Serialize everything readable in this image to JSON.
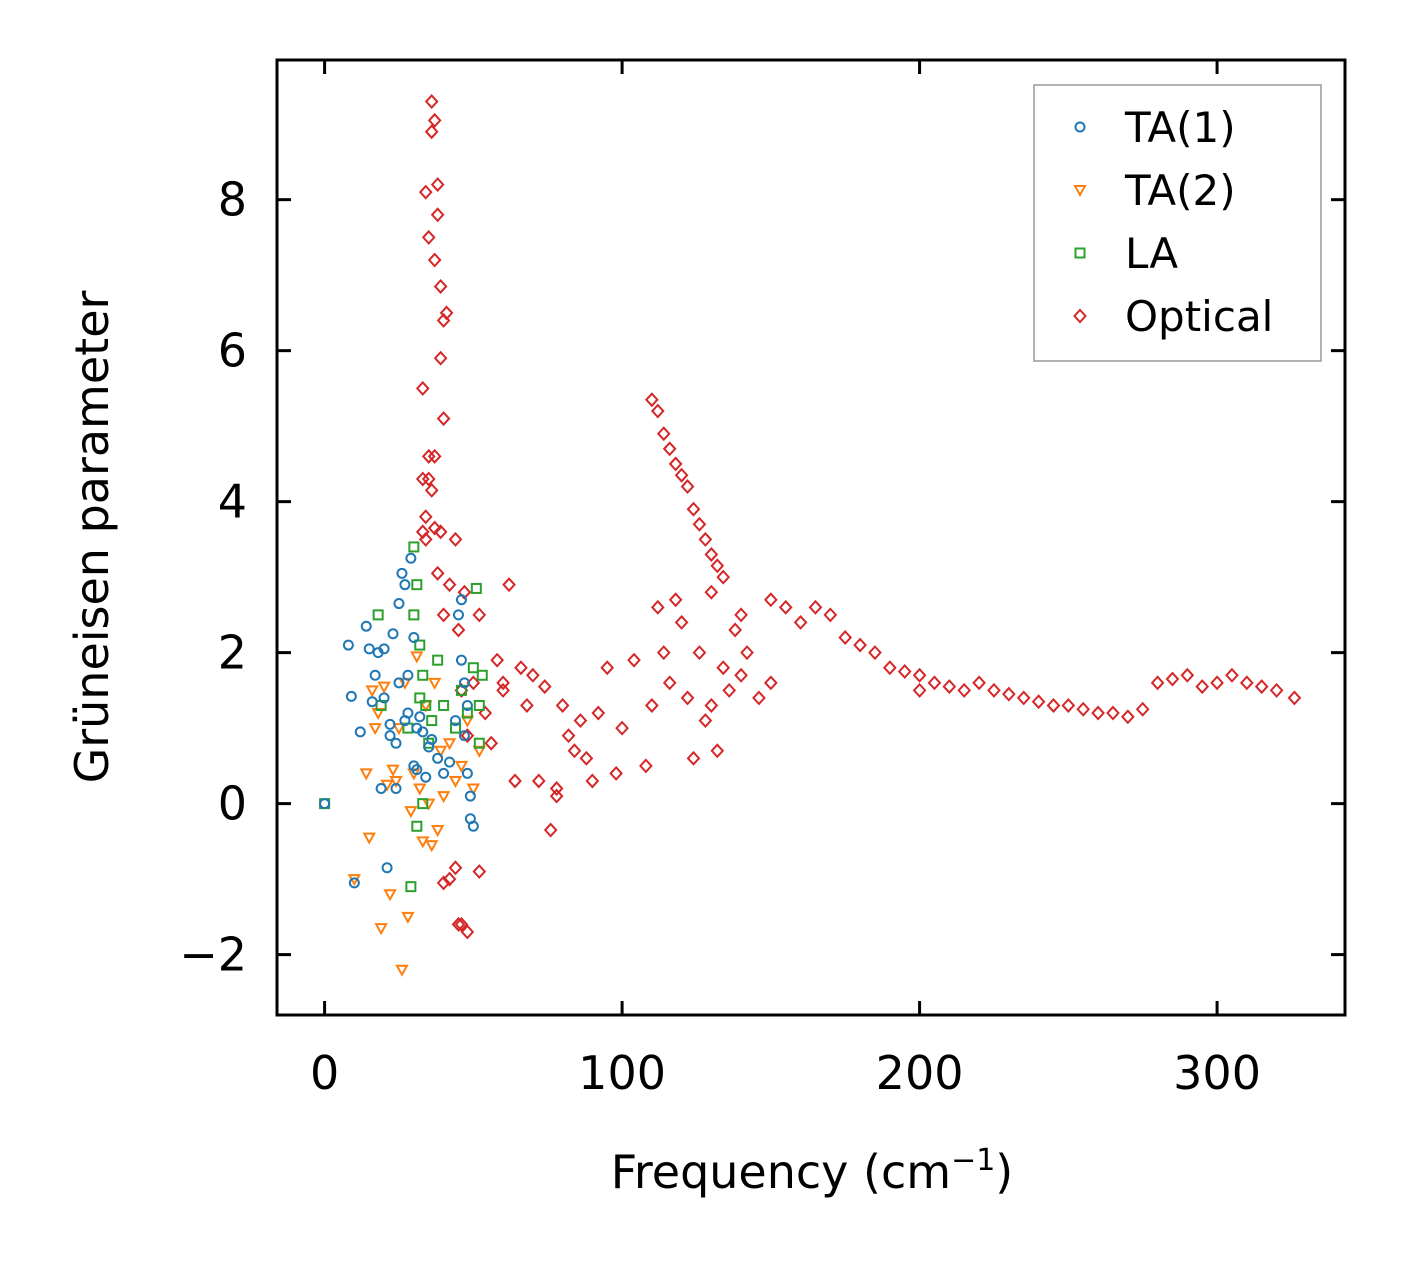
{
  "chart_data": {
    "type": "scatter",
    "title": "",
    "xlabel": "Frequency (cm",
    "xlabel_superscript": "−1",
    "xlabel_suffix": ")",
    "ylabel": "Grüneisen parameter",
    "xlim": [
      -16,
      343
    ],
    "ylim": [
      -2.8,
      9.85
    ],
    "xticks": [
      0,
      100,
      200,
      300
    ],
    "xtick_labels": [
      "0",
      "100",
      "200",
      "300"
    ],
    "yticks": [
      -2,
      0,
      2,
      4,
      6,
      8
    ],
    "ytick_labels": [
      "−2",
      "0",
      "2",
      "4",
      "6",
      "8"
    ],
    "grid": false,
    "legend_position": "top-right",
    "series": [
      {
        "name": "TA(1)",
        "marker": "circle",
        "color": "#1f77b4",
        "x": [
          0,
          8,
          9,
          10,
          12,
          14,
          15,
          16,
          17,
          18,
          19,
          20,
          20,
          21,
          22,
          22,
          23,
          24,
          24,
          25,
          25,
          26,
          27,
          27,
          28,
          28,
          29,
          30,
          30,
          31,
          31,
          32,
          33,
          34,
          35,
          36,
          38,
          40,
          42,
          44,
          45,
          46,
          46,
          47,
          47,
          48,
          48,
          49,
          49,
          50
        ],
        "y": [
          0,
          2.1,
          1.42,
          -1.05,
          0.95,
          2.35,
          2.05,
          1.35,
          1.7,
          2.0,
          0.2,
          1.4,
          2.05,
          -0.85,
          1.05,
          0.9,
          2.25,
          0.2,
          0.8,
          2.65,
          1.6,
          3.05,
          1.1,
          2.9,
          1.2,
          1.7,
          3.25,
          2.2,
          0.5,
          1.0,
          0.45,
          1.15,
          0.95,
          0.35,
          0.75,
          0.85,
          0.6,
          0.4,
          0.55,
          1.1,
          2.5,
          2.7,
          1.9,
          1.6,
          0.9,
          0.4,
          1.3,
          0.1,
          -0.2,
          -0.3
        ]
      },
      {
        "name": "TA(2)",
        "marker": "triangle-down",
        "color": "#ff7f0e",
        "x": [
          10,
          14,
          15,
          16,
          17,
          18,
          19,
          20,
          21,
          22,
          23,
          24,
          25,
          26,
          27,
          28,
          29,
          30,
          31,
          32,
          33,
          34,
          35,
          36,
          37,
          38,
          39,
          40,
          42,
          44,
          46,
          48,
          50,
          52
        ],
        "y": [
          -1.0,
          0.4,
          -0.45,
          1.5,
          1.0,
          1.2,
          -1.65,
          1.55,
          0.25,
          -1.2,
          0.45,
          0.3,
          1.0,
          -2.2,
          1.6,
          -1.5,
          -0.1,
          0.4,
          1.95,
          0.2,
          -0.5,
          1.3,
          0.0,
          -0.55,
          1.6,
          -0.35,
          0.7,
          0.1,
          0.8,
          0.3,
          0.5,
          1.1,
          0.2,
          0.7
        ]
      },
      {
        "name": "LA",
        "marker": "square",
        "color": "#2ca02c",
        "x": [
          0,
          18,
          19,
          28,
          29,
          30,
          30,
          31,
          31,
          32,
          32,
          33,
          33,
          34,
          35,
          36,
          38,
          40,
          44,
          46,
          48,
          50,
          51,
          52,
          52,
          53
        ],
        "y": [
          0,
          2.5,
          1.3,
          1.0,
          -1.1,
          3.4,
          2.5,
          2.9,
          -0.3,
          1.4,
          2.1,
          0.0,
          1.7,
          1.3,
          0.8,
          1.1,
          1.9,
          1.3,
          1.0,
          1.5,
          1.2,
          1.8,
          2.85,
          0.8,
          1.3,
          1.7
        ]
      },
      {
        "name": "Optical",
        "marker": "diamond",
        "color": "#d62728",
        "x": [
          34,
          35,
          36,
          36,
          37,
          37,
          38,
          38,
          39,
          39,
          40,
          40,
          41,
          33,
          33,
          33,
          34,
          34,
          35,
          35,
          36,
          37,
          37,
          38,
          39,
          40,
          42,
          44,
          45,
          46,
          47,
          48,
          50,
          52,
          54,
          56,
          58,
          60,
          62,
          64,
          66,
          68,
          70,
          72,
          74,
          76,
          78,
          80,
          82,
          84,
          86,
          88,
          90,
          92,
          95,
          98,
          100,
          104,
          108,
          110,
          112,
          114,
          116,
          118,
          120,
          122,
          124,
          126,
          128,
          130,
          132,
          134,
          136,
          138,
          140,
          142,
          146,
          150,
          155,
          160,
          165,
          170,
          175,
          180,
          185,
          190,
          195,
          200,
          205,
          210,
          215,
          220,
          225,
          230,
          235,
          240,
          245,
          250,
          255,
          260,
          265,
          270,
          275,
          280,
          285,
          290,
          295,
          300,
          305,
          310,
          315,
          320,
          326,
          40,
          42,
          45,
          48,
          52,
          44,
          46,
          130,
          140,
          150,
          200,
          78,
          60,
          110,
          112,
          114,
          116,
          118,
          120,
          122,
          124,
          126,
          128,
          130,
          132,
          134
        ],
        "y": [
          8.1,
          7.5,
          9.3,
          8.9,
          9.05,
          7.2,
          8.2,
          7.8,
          6.85,
          5.9,
          6.4,
          5.1,
          6.5,
          5.5,
          4.3,
          3.6,
          3.8,
          3.5,
          4.6,
          4.3,
          4.15,
          3.65,
          4.6,
          3.05,
          3.6,
          2.5,
          2.9,
          3.5,
          2.3,
          1.5,
          2.8,
          0.9,
          1.6,
          2.5,
          1.2,
          0.8,
          1.9,
          1.6,
          2.9,
          0.3,
          1.8,
          1.3,
          1.7,
          0.3,
          1.55,
          -0.35,
          0.2,
          1.3,
          0.9,
          0.7,
          1.1,
          0.6,
          0.3,
          1.2,
          1.8,
          0.4,
          1.0,
          1.9,
          0.5,
          1.3,
          2.6,
          2.0,
          1.6,
          2.7,
          2.4,
          1.4,
          0.6,
          2.0,
          1.1,
          2.8,
          0.7,
          1.8,
          1.5,
          2.3,
          2.5,
          2.0,
          1.4,
          2.7,
          2.6,
          2.4,
          2.6,
          2.5,
          2.2,
          2.1,
          2.0,
          1.8,
          1.75,
          1.7,
          1.6,
          1.55,
          1.5,
          1.6,
          1.5,
          1.45,
          1.4,
          1.35,
          1.3,
          1.3,
          1.25,
          1.2,
          1.2,
          1.15,
          1.25,
          1.6,
          1.65,
          1.7,
          1.55,
          1.6,
          1.7,
          1.6,
          1.55,
          1.5,
          1.4,
          -1.05,
          -1.0,
          -1.6,
          -1.7,
          -0.9,
          -0.85,
          -1.6,
          1.3,
          1.7,
          1.6,
          1.5,
          0.1,
          1.5,
          5.35,
          5.2,
          4.9,
          4.7,
          4.5,
          4.35,
          4.2,
          3.9,
          3.7,
          3.5,
          3.3,
          3.15,
          3.0
        ]
      }
    ]
  }
}
